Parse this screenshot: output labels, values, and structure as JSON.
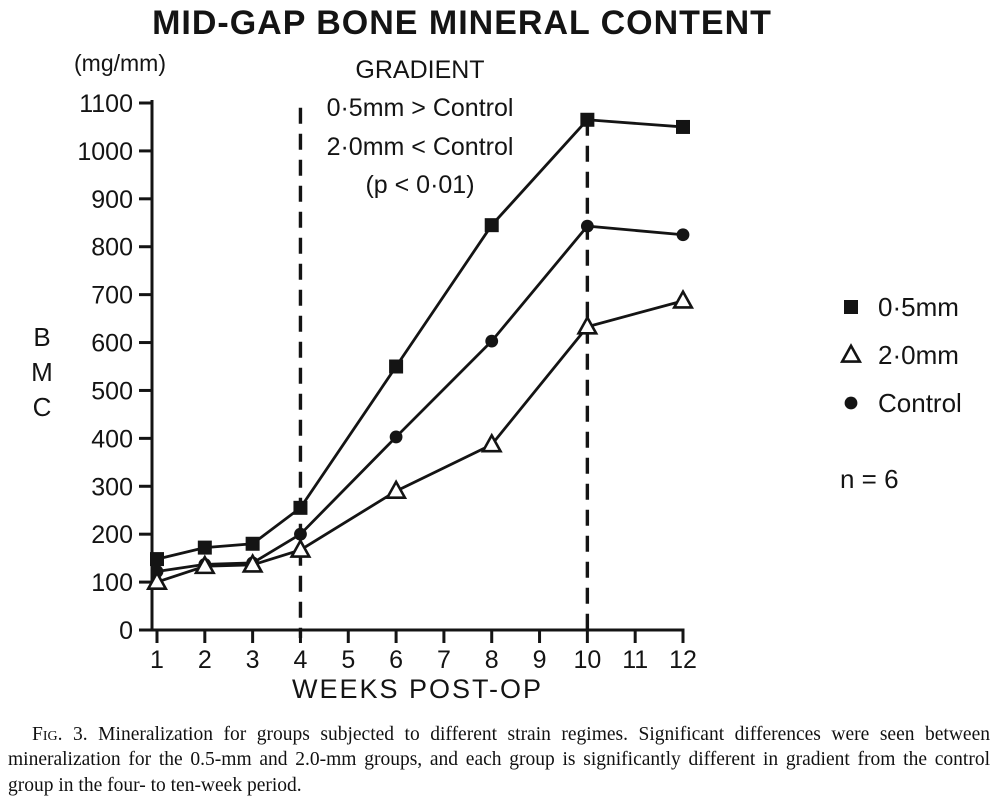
{
  "colors": {
    "ink": "#141414",
    "paper": "#ffffff"
  },
  "chart_data": {
    "type": "line",
    "title": "MID-GAP BONE MINERAL CONTENT",
    "annotation_lines": [
      "GRADIENT",
      "0·5mm > Control",
      "2·0mm < Control",
      "(p < 0·01)"
    ],
    "y_unit": "(mg/mm)",
    "ylabel": "BMC",
    "ylabel_display": "B\nM\nC",
    "xlabel": "WEEKS POST-OP",
    "x": [
      1,
      2,
      3,
      4,
      6,
      8,
      10,
      12
    ],
    "series": [
      {
        "name": "0·5mm",
        "marker": "filled-square",
        "values": [
          148,
          172,
          180,
          255,
          550,
          845,
          1065,
          1050
        ]
      },
      {
        "name": "Control",
        "marker": "filled-circle",
        "values": [
          122,
          137,
          140,
          200,
          403,
          603,
          843,
          825
        ]
      },
      {
        "name": "2·0mm",
        "marker": "open-triangle",
        "values": [
          100,
          133,
          136,
          167,
          290,
          387,
          633,
          687
        ]
      }
    ],
    "legend": {
      "position": "right",
      "items": [
        {
          "label": "0·5mm",
          "marker": "filled-square"
        },
        {
          "label": "2·0mm",
          "marker": "open-triangle"
        },
        {
          "label": "Control",
          "marker": "filled-circle"
        }
      ],
      "sample_size_label": "n = 6"
    },
    "x_ticks": [
      1,
      2,
      3,
      4,
      5,
      6,
      7,
      8,
      9,
      10,
      11,
      12
    ],
    "y_ticks": [
      0,
      100,
      200,
      300,
      400,
      500,
      600,
      700,
      800,
      900,
      1000,
      1100
    ],
    "ylim": [
      0,
      1100
    ],
    "xlim": [
      1,
      12
    ],
    "grid": false,
    "dashed_vlines": [
      {
        "x": 4,
        "top_value": 1090
      },
      {
        "x": 10,
        "top_value": 1065
      }
    ]
  },
  "caption": {
    "prefix": "Fig. 3.",
    "body": " Mineralization for groups subjected to different strain regimes. Significant differences were seen between mineralization for the 0.5-mm and 2.0-mm groups, and each group is significantly different in gradient from the control group in the four- to ten-week period."
  }
}
